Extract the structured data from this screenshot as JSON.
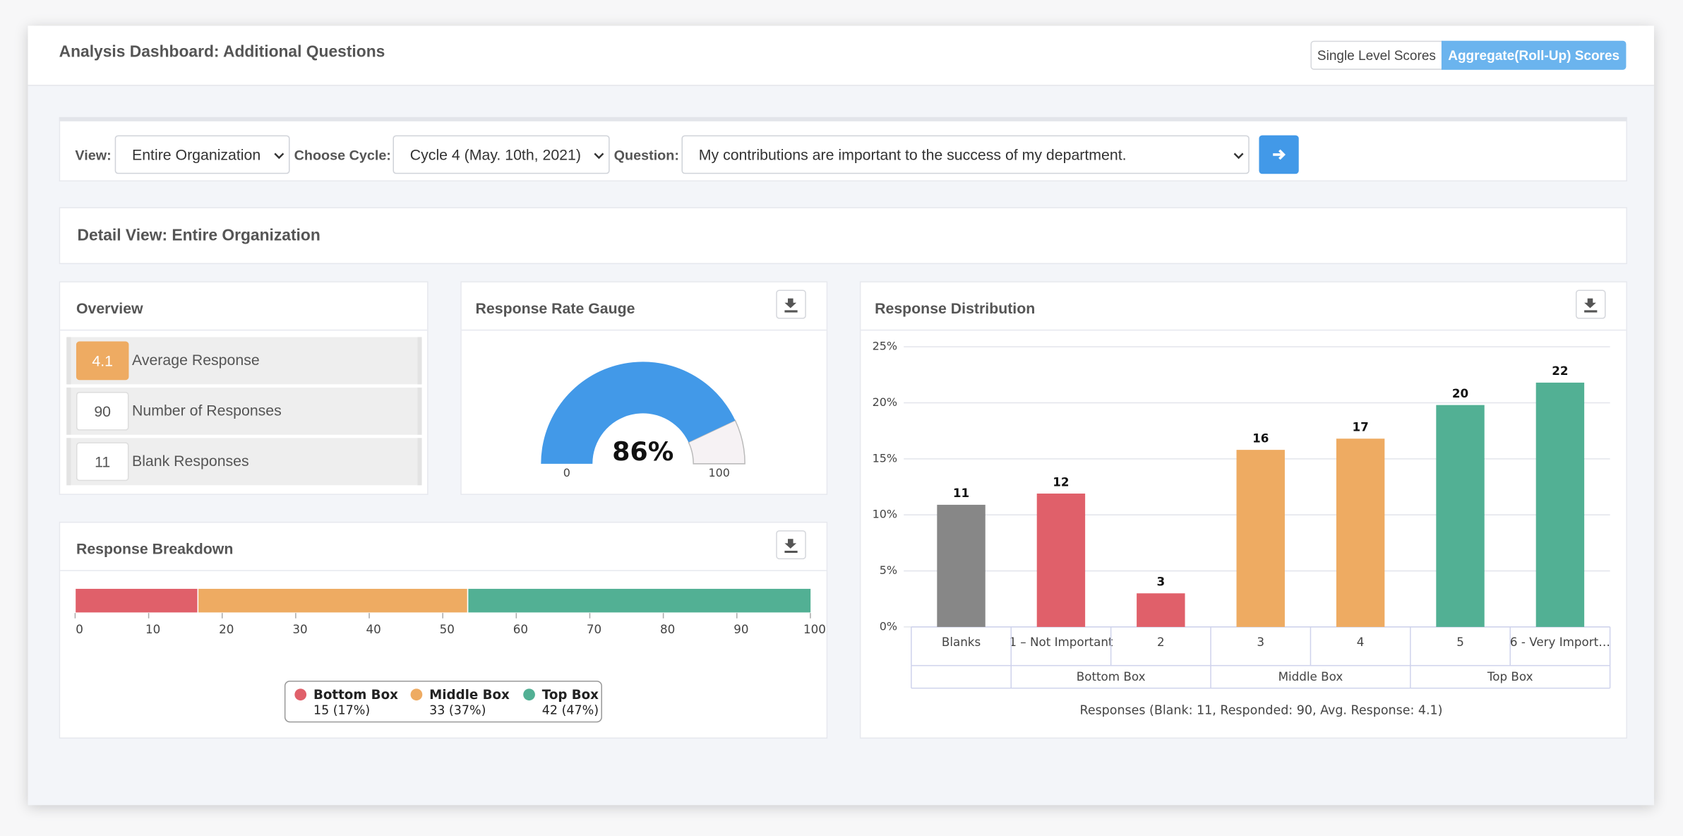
{
  "header": {
    "title": "Analysis Dashboard: Additional Questions",
    "buttons": [
      "Single Level Scores",
      "Aggregate(Roll-Up) Scores"
    ]
  },
  "filters": {
    "view_label": "View:",
    "view": "Entire Organization",
    "cycle_label": "Choose Cycle:",
    "cycle": "Cycle 4 (May. 10th, 2021)",
    "question_label": "Question:",
    "question": "My contributions are important to the success of my department."
  },
  "detail": {
    "title": "Detail View: Entire Organization"
  },
  "overview": {
    "title": "Overview",
    "rows": [
      {
        "value": 4.1,
        "label": "Average Response"
      },
      {
        "value": 90,
        "label": "Number of Responses"
      },
      {
        "value": 11,
        "label": "Blank Responses"
      }
    ]
  },
  "chart_data": [
    {
      "type": "gauge",
      "title": "Response Rate Gauge",
      "value": 86,
      "value_label": "86%",
      "ylim": [
        0,
        100
      ],
      "yticks": [
        0,
        100
      ],
      "color": "#4299e8",
      "track_color": "#f6f2f4"
    },
    {
      "type": "stacked-bar",
      "title": "Response Breakdown",
      "xlim": [
        0,
        100
      ],
      "xticks": [
        0,
        10,
        20,
        30,
        40,
        50,
        60,
        70,
        80,
        90,
        100
      ],
      "series": [
        {
          "name": "Bottom Box",
          "color": "#e0606a",
          "values": [
            16.7
          ],
          "legend_detail": "15 (17%)"
        },
        {
          "name": "Middle Box",
          "color": "#eeab62",
          "values": [
            36.7
          ],
          "legend_detail": "33 (37%)"
        },
        {
          "name": "Top Box",
          "color": "#52b094",
          "values": [
            46.7
          ],
          "legend_detail": "42 (47%)"
        }
      ]
    },
    {
      "type": "bar",
      "title": "Response Distribution",
      "categories": [
        "Blanks",
        "1 – Not Important",
        "2",
        "3",
        "4",
        "5",
        "6 - Very Import…"
      ],
      "category_groups": [
        null,
        "Bottom Box",
        "Bottom Box",
        "Middle Box",
        "Middle Box",
        "Top Box",
        "Top Box"
      ],
      "values": [
        10.9,
        11.9,
        3.0,
        15.8,
        16.8,
        19.8,
        21.8
      ],
      "counts": [
        11,
        12,
        3,
        16,
        17,
        20,
        22
      ],
      "colors": [
        "#878787",
        "#e0606a",
        "#e0606a",
        "#eeab62",
        "#eeab62",
        "#52b094",
        "#52b094"
      ],
      "ylim": [
        0,
        25
      ],
      "yticks": [
        {
          "value": 0,
          "label": "0%"
        },
        {
          "value": 5,
          "label": "5%"
        },
        {
          "value": 10,
          "label": "10%"
        },
        {
          "value": 15,
          "label": "15%"
        },
        {
          "value": 20,
          "label": "20%"
        },
        {
          "value": 25,
          "label": "25%"
        }
      ],
      "grid": true,
      "footnote": "Responses (Blank: 11, Responded: 90, Avg. Response: 4.1)"
    }
  ]
}
